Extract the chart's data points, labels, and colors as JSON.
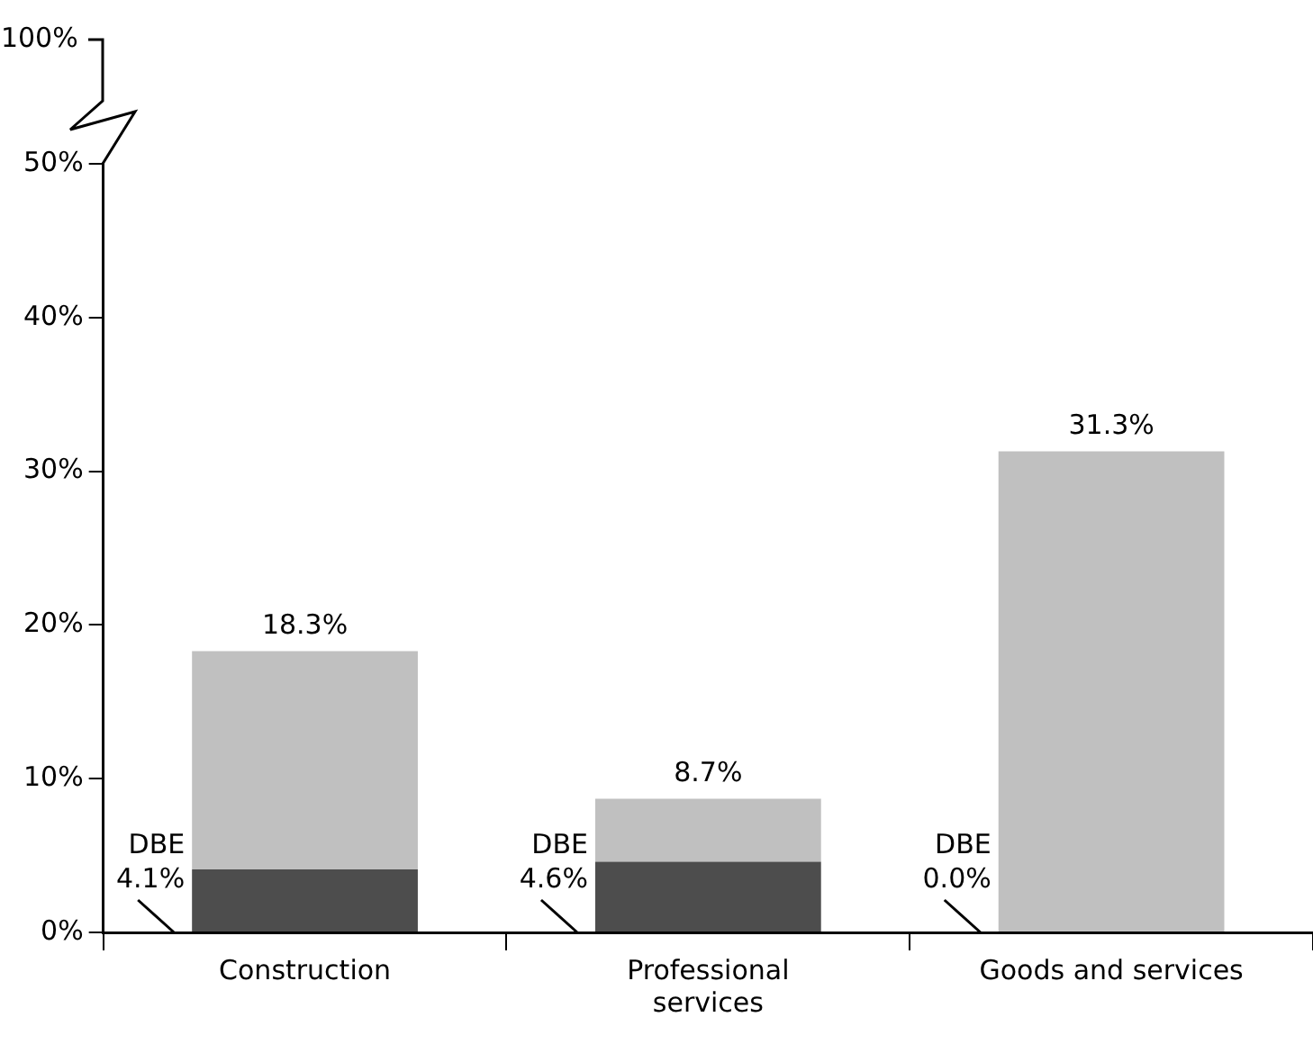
{
  "chart_data": {
    "type": "bar",
    "stacked": true,
    "categories": [
      "Construction",
      "Professional services",
      "Goods and services"
    ],
    "series": [
      {
        "color": "#4d4d4d",
        "values": [
          4.1,
          4.6,
          0.0
        ]
      },
      {
        "color": "#c0c0c0",
        "values": [
          14.2,
          4.1,
          31.3
        ]
      }
    ],
    "totals": [
      "18.3%",
      "8.7%",
      "31.3%"
    ],
    "ylim": [
      0,
      50
    ],
    "yticks": [
      {
        "value": 0,
        "label": "0%"
      },
      {
        "value": 10,
        "label": "10%"
      },
      {
        "value": 20,
        "label": "20%"
      },
      {
        "value": 30,
        "label": "30%"
      },
      {
        "value": 40,
        "label": "40%"
      },
      {
        "value": 50,
        "label": "50%"
      }
    ],
    "annotations": [
      "100%",
      "DBE 4.1%",
      "DBE 4.6%",
      "DBE 0.0%"
    ],
    "grid": false,
    "legend": false
  }
}
